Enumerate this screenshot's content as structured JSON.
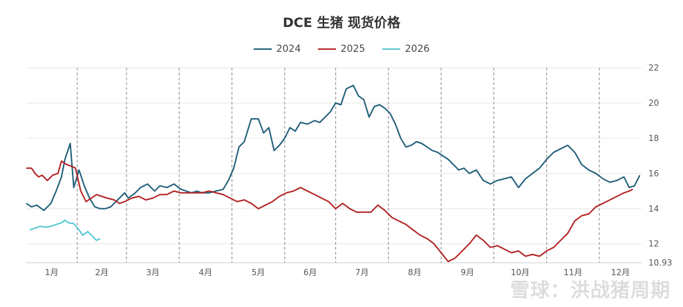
{
  "chart_data": {
    "type": "line",
    "title": "DCE 生猪 现货价格",
    "xlabel": "",
    "ylabel": "",
    "ylim": [
      10.93,
      22
    ],
    "yticks": [
      12,
      14,
      16,
      18,
      20,
      22
    ],
    "ymin_label": "10.93",
    "x_unit": "day of year",
    "xlim": [
      0,
      350
    ],
    "month_labels": [
      "1月",
      "2月",
      "3月",
      "4月",
      "5月",
      "6月",
      "7月",
      "8月",
      "9月",
      "10月",
      "11月",
      "12月"
    ],
    "month_starts": [
      0,
      29,
      57,
      87,
      117,
      147,
      176,
      206,
      236,
      266,
      296,
      326
    ],
    "series": [
      {
        "name": "2024",
        "color": "#1f5e7a",
        "x": [
          0,
          3,
          6,
          10,
          14,
          17,
          20,
          22,
          25,
          27,
          30,
          33,
          36,
          39,
          42,
          45,
          48,
          50,
          53,
          56,
          58,
          62,
          65,
          69,
          73,
          76,
          80,
          84,
          88,
          91,
          94,
          97,
          100,
          104,
          108,
          112,
          115,
          118,
          121,
          124,
          128,
          132,
          135,
          138,
          141,
          144,
          147,
          150,
          153,
          156,
          160,
          164,
          167,
          170,
          173,
          176,
          179,
          182,
          186,
          189,
          192,
          195,
          198,
          201,
          204,
          207,
          210,
          213,
          216,
          219,
          222,
          225,
          228,
          231,
          234,
          237,
          240,
          243,
          246,
          249,
          252,
          256,
          260,
          264,
          268,
          272,
          276,
          280,
          284,
          288,
          292,
          296,
          300,
          304,
          308,
          312,
          316,
          320,
          324,
          328,
          332,
          336,
          340,
          343,
          346,
          349
        ],
        "y": [
          14.3,
          14.1,
          14.2,
          13.9,
          14.3,
          15.0,
          15.8,
          16.8,
          17.7,
          15.2,
          16.2,
          15.3,
          14.6,
          14.1,
          14.0,
          14.0,
          14.1,
          14.3,
          14.6,
          14.9,
          14.6,
          14.9,
          15.2,
          15.4,
          15.0,
          15.3,
          15.2,
          15.4,
          15.1,
          15.0,
          14.9,
          15.0,
          14.9,
          14.9,
          15.0,
          15.1,
          15.6,
          16.3,
          17.5,
          17.8,
          19.1,
          19.1,
          18.3,
          18.6,
          17.3,
          17.6,
          18.0,
          18.6,
          18.4,
          18.9,
          18.8,
          19.0,
          18.9,
          19.2,
          19.5,
          20.0,
          19.9,
          20.8,
          21.0,
          20.4,
          20.2,
          19.2,
          19.8,
          19.9,
          19.7,
          19.4,
          18.8,
          18.0,
          17.5,
          17.6,
          17.8,
          17.7,
          17.5,
          17.3,
          17.2,
          17.0,
          16.8,
          16.5,
          16.2,
          16.3,
          16.0,
          16.2,
          15.6,
          15.4,
          15.6,
          15.7,
          15.8,
          15.2,
          15.7,
          16.0,
          16.3,
          16.8,
          17.2,
          17.4,
          17.6,
          17.2,
          16.5,
          16.2,
          16.0,
          15.7,
          15.5,
          15.6,
          15.8,
          15.2,
          15.3,
          15.9
        ],
        "_note": "x/y paired"
      },
      {
        "name": "2025",
        "color": "#b22222",
        "x": [
          0,
          3,
          5,
          7,
          9,
          12,
          15,
          18,
          20,
          23,
          26,
          28,
          31,
          34,
          37,
          40,
          43,
          46,
          50,
          53,
          56,
          60,
          64,
          68,
          72,
          76,
          80,
          84,
          88,
          92,
          96,
          100,
          104,
          108,
          112,
          116,
          120,
          124,
          128,
          132,
          136,
          140,
          144,
          148,
          152,
          156,
          160,
          164,
          168,
          172,
          176,
          180,
          184,
          188,
          192,
          196,
          200,
          204,
          208,
          212,
          216,
          220,
          224,
          228,
          232,
          236,
          240,
          244,
          248,
          252,
          256,
          260,
          264,
          268,
          272,
          276,
          280,
          284,
          288,
          292,
          296,
          300,
          304,
          308,
          312,
          316,
          320,
          324,
          328,
          332,
          336,
          340,
          343,
          345
        ],
        "y": [
          16.3,
          16.3,
          16.0,
          15.8,
          15.9,
          15.6,
          15.9,
          16.0,
          16.7,
          16.5,
          16.4,
          16.3,
          15.0,
          14.4,
          14.6,
          14.8,
          14.7,
          14.6,
          14.5,
          14.3,
          14.4,
          14.6,
          14.7,
          14.5,
          14.6,
          14.8,
          14.8,
          15.0,
          14.9,
          14.9,
          14.9,
          14.9,
          15.0,
          14.9,
          14.8,
          14.6,
          14.4,
          14.5,
          14.3,
          14.0,
          14.2,
          14.4,
          14.7,
          14.9,
          15.0,
          15.2,
          15.0,
          14.8,
          14.6,
          14.4,
          14.0,
          14.3,
          14.0,
          13.8,
          13.8,
          13.8,
          14.2,
          13.9,
          13.5,
          13.3,
          13.1,
          12.8,
          12.5,
          12.3,
          12.0,
          11.5,
          11.0,
          11.2,
          11.6,
          12.0,
          12.5,
          12.2,
          11.8,
          11.9,
          11.7,
          11.5,
          11.6,
          11.3,
          11.4,
          11.3,
          11.6,
          11.8,
          12.2,
          12.6,
          13.3,
          13.6,
          13.7,
          14.1,
          14.3,
          14.5,
          14.7,
          14.9,
          15.0,
          15.1
        ]
      },
      {
        "name": "2026",
        "color": "#56c8d4",
        "x": [
          2,
          5,
          8,
          11,
          14,
          17,
          20,
          22,
          24,
          27,
          30,
          32,
          35,
          38,
          40,
          42
        ],
        "y": [
          12.8,
          12.9,
          13.0,
          12.95,
          13.0,
          13.1,
          13.2,
          13.35,
          13.2,
          13.15,
          12.8,
          12.5,
          12.7,
          12.4,
          12.2,
          12.3
        ]
      }
    ]
  },
  "watermark": "雪球：洪战猪周期"
}
